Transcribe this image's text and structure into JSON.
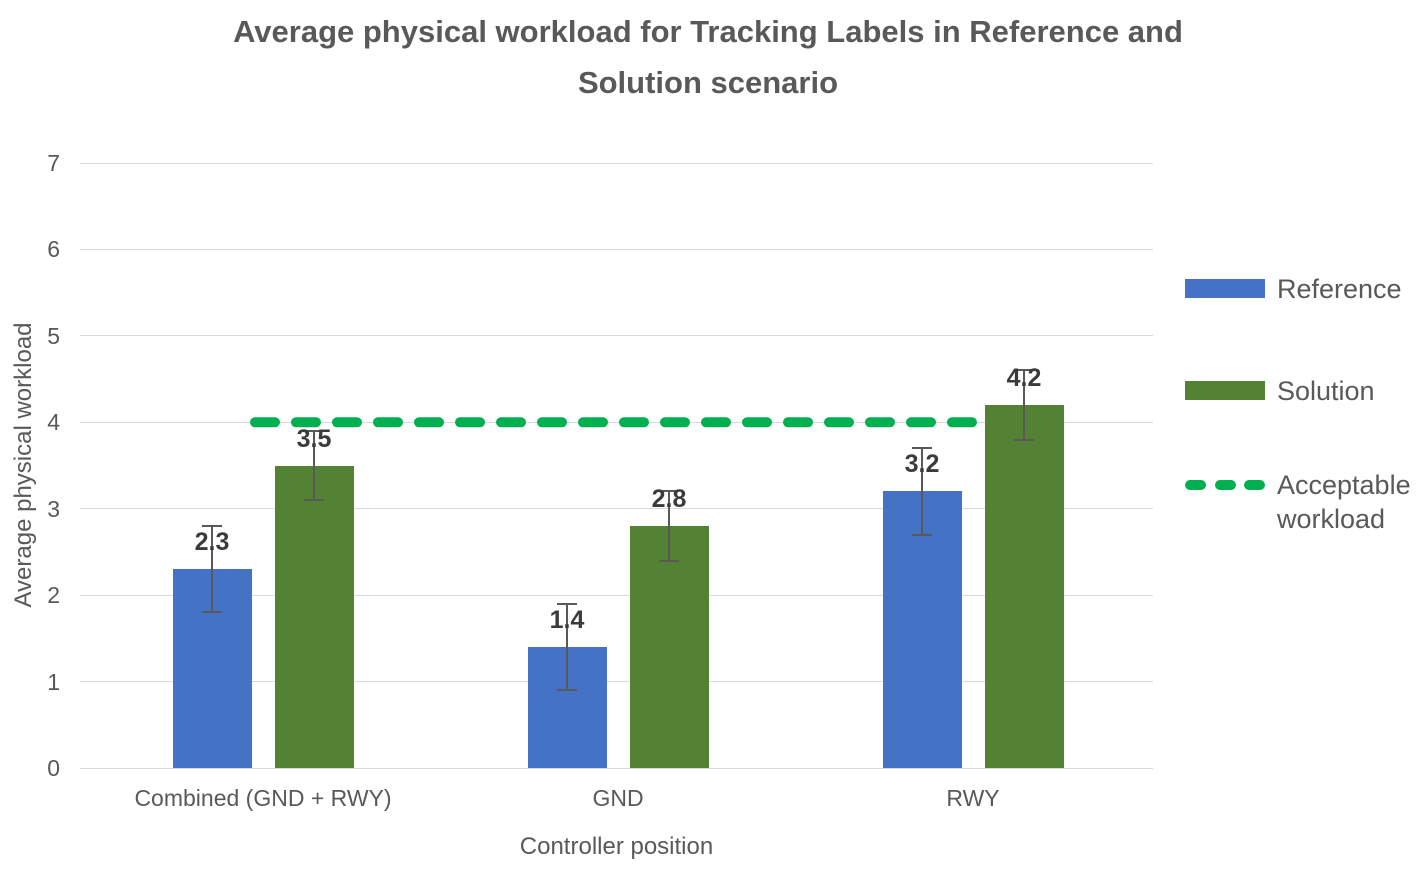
{
  "header": {
    "line1": "Average physical workload for Tracking Labels in Reference and",
    "line2": "Solution scenario"
  },
  "chart_data": {
    "type": "bar",
    "title": "Average physical workload for Tracking Labels in Reference and Solution scenario",
    "categories": [
      "Combined (GND + RWY)",
      "GND",
      "RWY"
    ],
    "series": [
      {
        "name": "Reference",
        "color": "#4472C4",
        "values": [
          2.3,
          1.4,
          3.2
        ],
        "value_labels": [
          "2.3",
          "1.4",
          "3.2"
        ],
        "errors": [
          0.5,
          0.5,
          0.5
        ]
      },
      {
        "name": "Solution",
        "color": "#548235",
        "values": [
          3.5,
          2.8,
          4.2
        ],
        "value_labels": [
          "3.5",
          "2.8",
          "4.2"
        ],
        "errors": [
          0.4,
          0.4,
          0.4
        ]
      }
    ],
    "reference_line": {
      "label": "Acceptable workload",
      "value": 4,
      "color": "#00B050",
      "style": "dashed"
    },
    "xlabel": "Controller position",
    "ylabel": "Average physical workload",
    "ylim": [
      0,
      7
    ],
    "yticks": [
      0,
      1,
      2,
      3,
      4,
      5,
      6,
      7
    ],
    "grid": true,
    "legend_position": "right"
  },
  "colors": {
    "reference_bar": "#4472C4",
    "solution_bar": "#548235",
    "acceptable_line": "#00B050",
    "gridline": "#D9D9D9",
    "text": "#595959",
    "data_label": "#3B3B3B",
    "error_bar": "#595959",
    "background": "#FFFFFF"
  }
}
